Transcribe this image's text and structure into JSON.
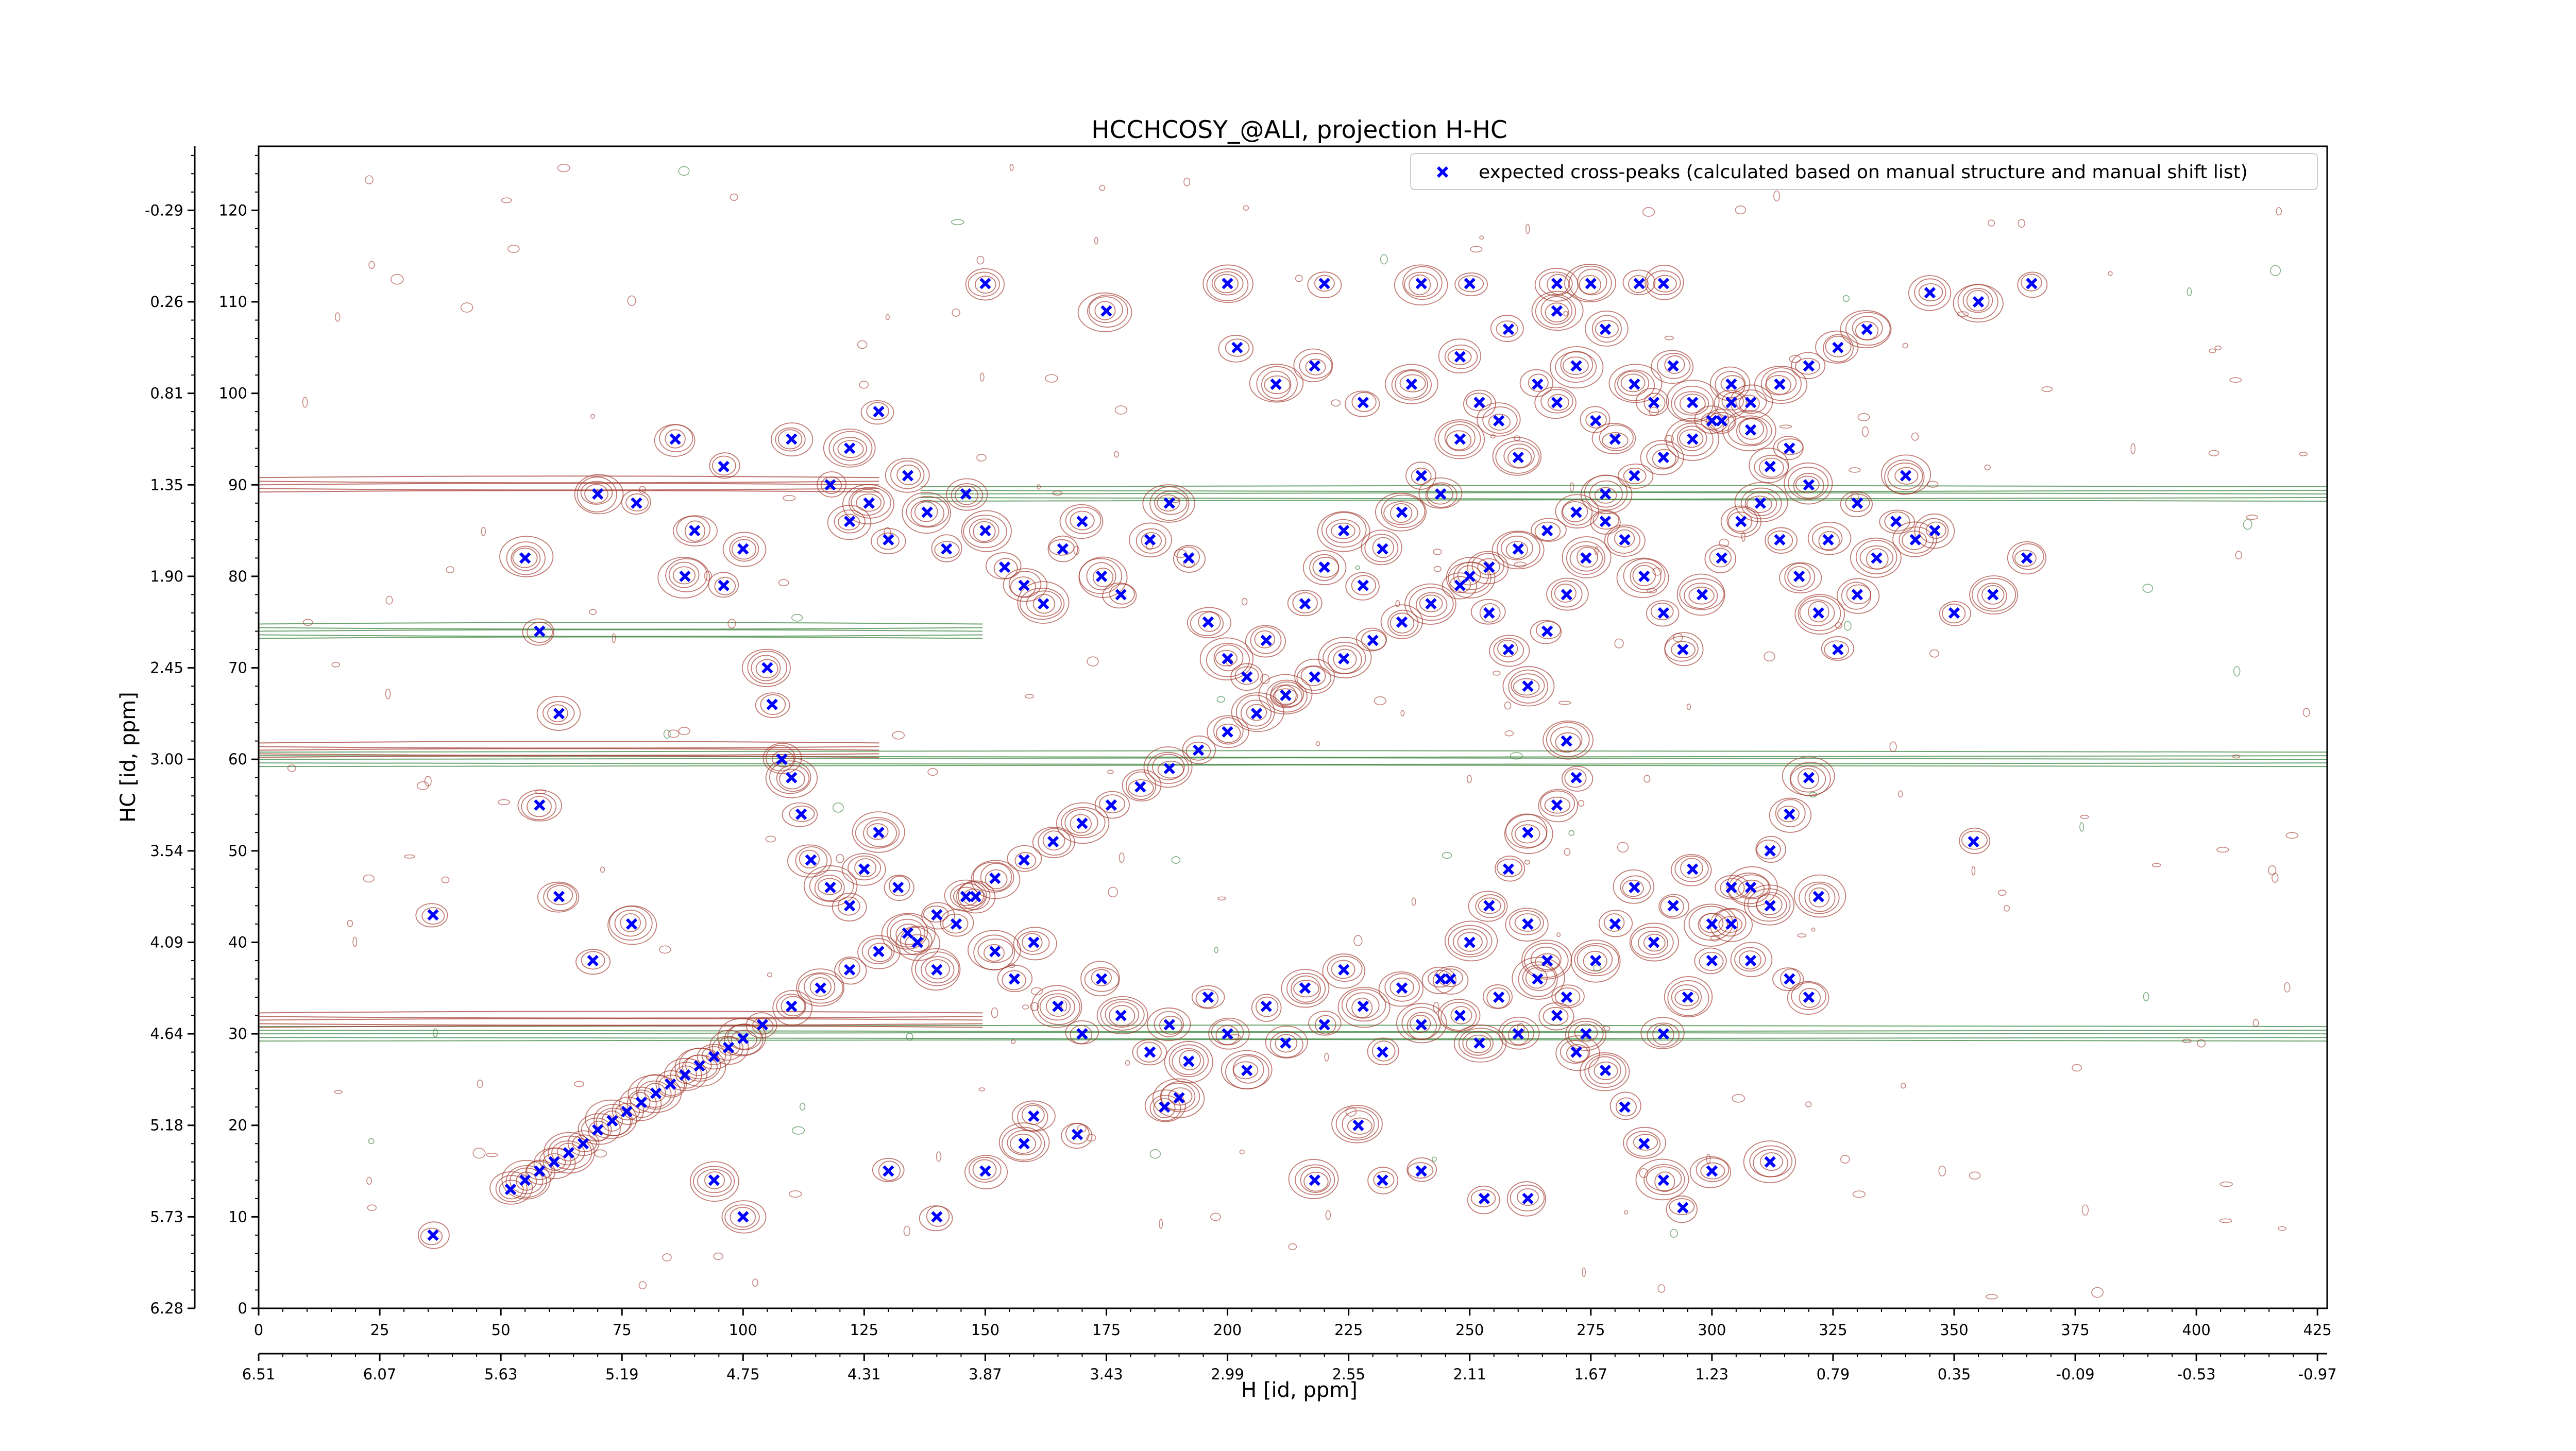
{
  "colors": {
    "peak_marker": "#0000ff",
    "positive_contour": "#a0352a",
    "negative_contour": "#2e7d32",
    "axis": "#000000",
    "background": "#ffffff"
  },
  "chart_data": {
    "type": "scatter",
    "title": "HCCHCOSY_@ALI, projection H-HC",
    "xlabel": "H [id, ppm]",
    "ylabel": "HC [id, ppm]",
    "x_index_range": [
      0,
      427
    ],
    "y_index_range": [
      0,
      127
    ],
    "x_index_ticks": [
      "0",
      "25",
      "50",
      "75",
      "100",
      "125",
      "150",
      "175",
      "200",
      "225",
      "250",
      "275",
      "300",
      "325",
      "350",
      "375",
      "400",
      "425"
    ],
    "x_ppm_ticks": [
      "6.51",
      "6.07",
      "5.63",
      "5.19",
      "4.75",
      "4.31",
      "3.87",
      "3.43",
      "2.99",
      "2.55",
      "2.11",
      "1.67",
      "1.23",
      "0.79",
      "0.35",
      "-0.09",
      "-0.53",
      "-0.97"
    ],
    "y_index_ticks": [
      "0",
      "10",
      "20",
      "30",
      "40",
      "50",
      "60",
      "70",
      "80",
      "90",
      "100",
      "110",
      "120"
    ],
    "y_ppm_ticks": [
      "6.28",
      "5.73",
      "5.18",
      "4.64",
      "4.09",
      "3.54",
      "3.00",
      "2.45",
      "1.90",
      "1.35",
      "0.81",
      "0.26",
      "-0.29"
    ],
    "grid": false,
    "legend_position": "top-right",
    "series": [
      {
        "name": "expected cross-peaks (calculated based on manual structure and manual shift list)",
        "marker": "x",
        "points": [
          [
            36,
            8
          ],
          [
            52,
            13
          ],
          [
            55,
            14
          ],
          [
            58,
            15
          ],
          [
            61,
            16
          ],
          [
            64,
            17
          ],
          [
            67,
            18
          ],
          [
            70,
            19.5
          ],
          [
            73,
            20.5
          ],
          [
            76,
            21.5
          ],
          [
            79,
            22.5
          ],
          [
            82,
            23.5
          ],
          [
            85,
            24.5
          ],
          [
            88,
            25.5
          ],
          [
            91,
            26.5
          ],
          [
            94,
            27.5
          ],
          [
            97,
            28.5
          ],
          [
            100,
            29.5
          ],
          [
            104,
            31
          ],
          [
            110,
            33
          ],
          [
            116,
            35
          ],
          [
            122,
            37
          ],
          [
            128,
            39
          ],
          [
            134,
            41
          ],
          [
            140,
            43
          ],
          [
            146,
            45
          ],
          [
            152,
            47
          ],
          [
            158,
            49
          ],
          [
            164,
            51
          ],
          [
            170,
            53
          ],
          [
            176,
            55
          ],
          [
            182,
            57
          ],
          [
            188,
            59
          ],
          [
            194,
            61
          ],
          [
            200,
            63
          ],
          [
            206,
            65
          ],
          [
            212,
            67
          ],
          [
            218,
            69
          ],
          [
            224,
            71
          ],
          [
            230,
            73
          ],
          [
            236,
            75
          ],
          [
            242,
            77
          ],
          [
            248,
            79
          ],
          [
            254,
            81
          ],
          [
            260,
            83
          ],
          [
            266,
            85
          ],
          [
            272,
            87
          ],
          [
            278,
            89
          ],
          [
            284,
            91
          ],
          [
            290,
            93
          ],
          [
            296,
            95
          ],
          [
            302,
            97
          ],
          [
            308,
            99
          ],
          [
            314,
            101
          ],
          [
            320,
            103
          ],
          [
            326,
            105
          ],
          [
            332,
            107
          ],
          [
            36,
            43
          ],
          [
            62,
            45
          ],
          [
            77,
            42
          ],
          [
            69,
            38
          ],
          [
            58,
            55
          ],
          [
            55,
            82
          ],
          [
            58,
            74
          ],
          [
            62,
            65
          ],
          [
            70,
            89
          ],
          [
            78,
            88
          ],
          [
            90,
            85
          ],
          [
            88,
            80
          ],
          [
            96,
            79
          ],
          [
            100,
            83
          ],
          [
            105,
            70
          ],
          [
            106,
            66
          ],
          [
            108,
            60
          ],
          [
            110,
            58
          ],
          [
            112,
            54
          ],
          [
            114,
            49
          ],
          [
            118,
            46
          ],
          [
            122,
            44
          ],
          [
            125,
            48
          ],
          [
            128,
            52
          ],
          [
            132,
            46
          ],
          [
            136,
            40
          ],
          [
            140,
            37
          ],
          [
            144,
            42
          ],
          [
            148,
            45
          ],
          [
            152,
            39
          ],
          [
            156,
            36
          ],
          [
            160,
            40
          ],
          [
            165,
            33
          ],
          [
            170,
            30
          ],
          [
            174,
            36
          ],
          [
            178,
            32
          ],
          [
            184,
            28
          ],
          [
            188,
            31
          ],
          [
            192,
            27
          ],
          [
            196,
            34
          ],
          [
            200,
            30
          ],
          [
            204,
            26
          ],
          [
            208,
            33
          ],
          [
            212,
            29
          ],
          [
            216,
            35
          ],
          [
            220,
            31
          ],
          [
            224,
            37
          ],
          [
            228,
            33
          ],
          [
            232,
            28
          ],
          [
            236,
            35
          ],
          [
            240,
            31
          ],
          [
            244,
            36
          ],
          [
            248,
            32
          ],
          [
            252,
            29
          ],
          [
            256,
            34
          ],
          [
            260,
            30
          ],
          [
            264,
            36
          ],
          [
            268,
            32
          ],
          [
            272,
            28
          ],
          [
            276,
            38
          ],
          [
            280,
            42
          ],
          [
            284,
            46
          ],
          [
            288,
            40
          ],
          [
            292,
            44
          ],
          [
            296,
            48
          ],
          [
            300,
            42
          ],
          [
            304,
            46
          ],
          [
            308,
            38
          ],
          [
            312,
            44
          ],
          [
            316,
            36
          ],
          [
            320,
            34
          ],
          [
            322,
            45
          ],
          [
            118,
            90
          ],
          [
            122,
            86
          ],
          [
            126,
            88
          ],
          [
            130,
            84
          ],
          [
            134,
            91
          ],
          [
            138,
            87
          ],
          [
            142,
            83
          ],
          [
            146,
            89
          ],
          [
            150,
            85
          ],
          [
            154,
            81
          ],
          [
            158,
            79
          ],
          [
            162,
            77
          ],
          [
            166,
            83
          ],
          [
            170,
            86
          ],
          [
            174,
            80
          ],
          [
            178,
            78
          ],
          [
            184,
            84
          ],
          [
            188,
            88
          ],
          [
            192,
            82
          ],
          [
            196,
            75
          ],
          [
            200,
            71
          ],
          [
            204,
            69
          ],
          [
            208,
            73
          ],
          [
            212,
            67
          ],
          [
            216,
            77
          ],
          [
            220,
            81
          ],
          [
            224,
            85
          ],
          [
            228,
            79
          ],
          [
            232,
            83
          ],
          [
            236,
            87
          ],
          [
            240,
            91
          ],
          [
            244,
            89
          ],
          [
            248,
            95
          ],
          [
            252,
            99
          ],
          [
            256,
            97
          ],
          [
            260,
            93
          ],
          [
            264,
            101
          ],
          [
            268,
            99
          ],
          [
            272,
            103
          ],
          [
            276,
            97
          ],
          [
            280,
            95
          ],
          [
            284,
            101
          ],
          [
            288,
            99
          ],
          [
            292,
            103
          ],
          [
            296,
            99
          ],
          [
            300,
            97
          ],
          [
            304,
            101
          ],
          [
            250,
            80
          ],
          [
            254,
            76
          ],
          [
            258,
            72
          ],
          [
            262,
            68
          ],
          [
            266,
            74
          ],
          [
            270,
            78
          ],
          [
            274,
            82
          ],
          [
            278,
            86
          ],
          [
            282,
            84
          ],
          [
            286,
            80
          ],
          [
            290,
            76
          ],
          [
            294,
            72
          ],
          [
            298,
            78
          ],
          [
            302,
            82
          ],
          [
            306,
            86
          ],
          [
            310,
            88
          ],
          [
            314,
            84
          ],
          [
            318,
            80
          ],
          [
            322,
            76
          ],
          [
            326,
            72
          ],
          [
            330,
            78
          ],
          [
            334,
            82
          ],
          [
            338,
            86
          ],
          [
            342,
            84
          ],
          [
            240,
            112
          ],
          [
            250,
            112
          ],
          [
            268,
            112
          ],
          [
            275,
            112
          ],
          [
            285,
            112
          ],
          [
            290,
            112
          ],
          [
            200,
            112
          ],
          [
            220,
            112
          ],
          [
            345,
            111
          ],
          [
            355,
            110
          ],
          [
            366,
            112
          ],
          [
            150,
            112
          ],
          [
            175,
            109
          ],
          [
            128,
            98
          ],
          [
            110,
            95
          ],
          [
            122,
            94
          ],
          [
            96,
            92
          ],
          [
            86,
            95
          ],
          [
            270,
            62
          ],
          [
            272,
            58
          ],
          [
            268,
            55
          ],
          [
            262,
            52
          ],
          [
            258,
            48
          ],
          [
            254,
            44
          ],
          [
            250,
            40
          ],
          [
            246,
            36
          ],
          [
            262,
            42
          ],
          [
            266,
            38
          ],
          [
            270,
            34
          ],
          [
            274,
            30
          ],
          [
            278,
            26
          ],
          [
            282,
            22
          ],
          [
            286,
            18
          ],
          [
            290,
            14
          ],
          [
            294,
            11
          ],
          [
            290,
            30
          ],
          [
            295,
            34
          ],
          [
            300,
            38
          ],
          [
            304,
            42
          ],
          [
            308,
            46
          ],
          [
            312,
            50
          ],
          [
            316,
            54
          ],
          [
            320,
            58
          ],
          [
            253,
            12
          ],
          [
            262,
            12
          ],
          [
            218,
            14
          ],
          [
            232,
            14
          ],
          [
            300,
            15
          ],
          [
            312,
            16
          ],
          [
            130,
            15
          ],
          [
            150,
            15
          ],
          [
            158,
            18
          ],
          [
            169,
            19
          ],
          [
            187,
            22
          ],
          [
            227,
            20
          ],
          [
            240,
            15
          ],
          [
            160,
            21
          ],
          [
            190,
            23
          ],
          [
            140,
            10
          ],
          [
            100,
            10
          ],
          [
            94,
            14
          ],
          [
            354,
            51
          ],
          [
            365,
            82
          ],
          [
            358,
            78
          ],
          [
            350,
            76
          ],
          [
            346,
            85
          ],
          [
            340,
            91
          ],
          [
            330,
            88
          ],
          [
            324,
            84
          ],
          [
            320,
            90
          ],
          [
            316,
            94
          ],
          [
            312,
            92
          ],
          [
            308,
            96
          ],
          [
            304,
            99
          ],
          [
            278,
            107
          ],
          [
            268,
            109
          ],
          [
            258,
            107
          ],
          [
            248,
            104
          ],
          [
            238,
            101
          ],
          [
            228,
            99
          ],
          [
            218,
            103
          ],
          [
            210,
            101
          ],
          [
            202,
            105
          ]
        ]
      }
    ]
  }
}
